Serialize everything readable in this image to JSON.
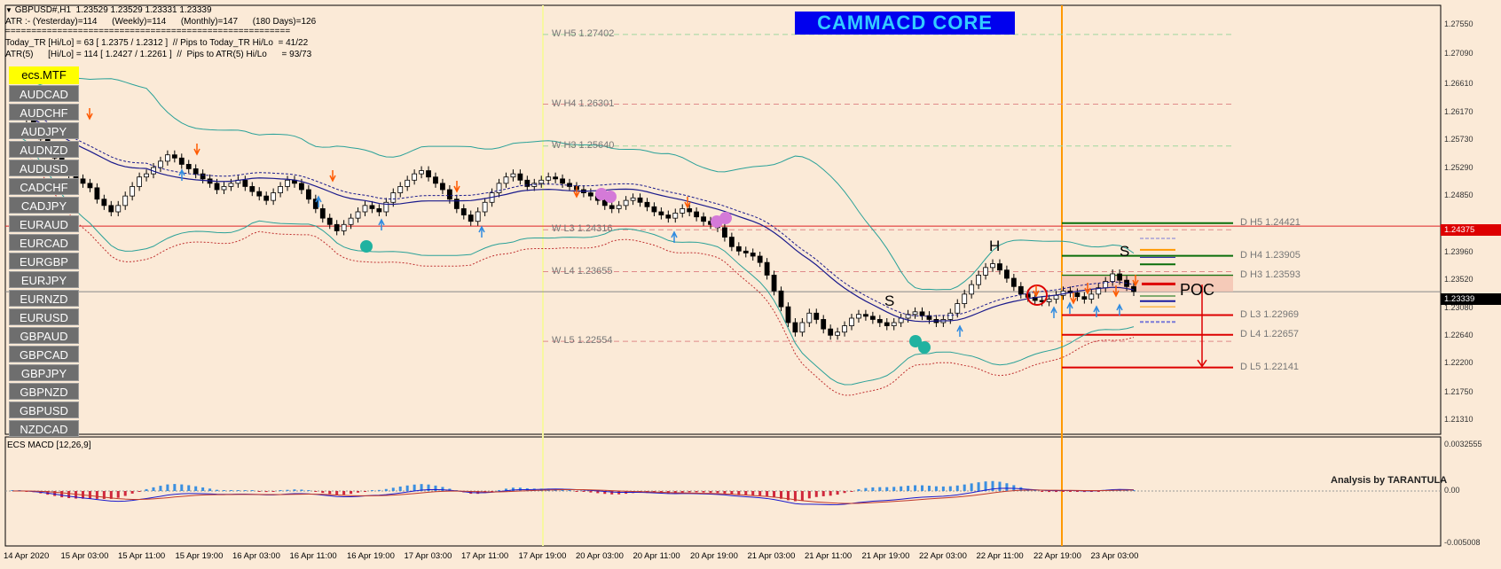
{
  "header": {
    "line1": "GBPUSD#,H1  1.23529 1.23529 1.23331 1.23339",
    "line2": "ATR :- (Yesterday)=114      (Weekly)=114      (Monthly)=147      (180 Days)=126",
    "line3": "=======================================================",
    "line4": "Today_TR [Hi/Lo] = 63 [ 1.2375 / 1.2312 ]  // Pips to Today_TR Hi/Lo  = 41/22",
    "line5": "ATR(5)      [Hi/Lo] = 114 [ 1.2427 / 1.2261 ]  //  Pips to ATR(5) Hi/Lo      = 93/73"
  },
  "banner": "CAMMACD CORE",
  "symbol_panel": {
    "active": "ecs.MTF",
    "items": [
      "AUDCAD",
      "AUDCHF",
      "AUDJPY",
      "AUDNZD",
      "AUDUSD",
      "CADCHF",
      "CADJPY",
      "EURAUD",
      "EURCAD",
      "EURGBP",
      "EURJPY",
      "EURNZD",
      "EURUSD",
      "GBPAUD",
      "GBPCAD",
      "GBPJPY",
      "GBPNZD",
      "GBPUSD",
      "NZDCAD"
    ]
  },
  "weekly_levels": [
    {
      "label": "W  H5 1.27402",
      "value": 1.27402
    },
    {
      "label": "W  H4 1.26301",
      "value": 1.26301
    },
    {
      "label": "W  H3 1.25640",
      "value": 1.2564
    },
    {
      "label": "W  L3 1.24316",
      "value": 1.24316
    },
    {
      "label": "W  L4 1.23655",
      "value": 1.23655
    },
    {
      "label": "W  L5 1.22554",
      "value": 1.22554
    }
  ],
  "daily_levels": [
    {
      "label": "D  H5 1.24421",
      "value": 1.24421,
      "color": "#0a6e0a"
    },
    {
      "label": "D  H4 1.23905",
      "value": 1.23905,
      "color": "#0a6e0a"
    },
    {
      "label": "D  H3 1.23593",
      "value": 1.23593,
      "color": "#0a6e0a"
    },
    {
      "label": "D  L3 1.22969",
      "value": 1.22969,
      "color": "#dd0000"
    },
    {
      "label": "D  L4 1.22657",
      "value": 1.22657,
      "color": "#dd0000"
    },
    {
      "label": "D  L5 1.22141",
      "value": 1.22141,
      "color": "#dd0000"
    }
  ],
  "annotations": {
    "s_left": "S",
    "h": "H",
    "s_right": "S",
    "poc": "POC",
    "analysis": "Analysis by TARANTULA"
  },
  "price_axis": {
    "ticks": [
      "1.27550",
      "1.27090",
      "1.26610",
      "1.26170",
      "1.25730",
      "1.25290",
      "1.24850",
      "1.23960",
      "1.23520",
      "1.23080",
      "1.22640",
      "1.22200",
      "1.21750",
      "1.21310"
    ],
    "hline_badge": "1.24375",
    "current_badge": "1.23339"
  },
  "macd": {
    "label": "ECS MACD [12,26,9]",
    "ticks": [
      "0.0032555",
      "0.00",
      "-0.005008"
    ]
  },
  "time_axis": [
    "14 Apr 2020",
    "15 Apr 03:00",
    "15 Apr 11:00",
    "15 Apr 19:00",
    "16 Apr 03:00",
    "16 Apr 11:00",
    "16 Apr 19:00",
    "17 Apr 03:00",
    "17 Apr 11:00",
    "17 Apr 19:00",
    "20 Apr 03:00",
    "20 Apr 11:00",
    "20 Apr 19:00",
    "21 Apr 03:00",
    "21 Apr 11:00",
    "21 Apr 19:00",
    "22 Apr 03:00",
    "22 Apr 11:00",
    "22 Apr 19:00",
    "23 Apr 03:00"
  ],
  "colors": {
    "bg": "#fbead7",
    "bull": "#ffffff",
    "bear": "#000000",
    "bb": "#2aa198",
    "ma": "#1a1a8c",
    "macd_pos": "#3a8fe0",
    "macd_neg": "#d0283c",
    "vline_orange": "#ff9900",
    "vline_yellow": "#f7f7a0"
  },
  "chart_data": {
    "type": "candlestick",
    "symbol": "GBPUSD#",
    "timeframe": "H1",
    "ylim": [
      1.2131,
      1.2775
    ],
    "close": [
      1.2612,
      1.2618,
      1.2605,
      1.259,
      1.2575,
      1.256,
      1.2545,
      1.2528,
      1.252,
      1.2512,
      1.2505,
      1.2498,
      1.248,
      1.247,
      1.246,
      1.247,
      1.2485,
      1.25,
      1.2515,
      1.252,
      1.253,
      1.254,
      1.255,
      1.2545,
      1.2535,
      1.2528,
      1.252,
      1.2512,
      1.2505,
      1.2495,
      1.25,
      1.2505,
      1.251,
      1.25,
      1.2492,
      1.2485,
      1.2478,
      1.249,
      1.25,
      1.251,
      1.2505,
      1.2495,
      1.248,
      1.2465,
      1.245,
      1.244,
      1.243,
      1.244,
      1.245,
      1.246,
      1.247,
      1.2465,
      1.246,
      1.2475,
      1.249,
      1.25,
      1.251,
      1.252,
      1.2525,
      1.2515,
      1.2505,
      1.2495,
      1.248,
      1.2465,
      1.2455,
      1.2445,
      1.246,
      1.2475,
      1.249,
      1.2505,
      1.2515,
      1.252,
      1.251,
      1.25,
      1.2505,
      1.251,
      1.2515,
      1.2512,
      1.2505,
      1.25,
      1.2495,
      1.249,
      1.2485,
      1.2478,
      1.247,
      1.2465,
      1.247,
      1.2478,
      1.2482,
      1.2475,
      1.2468,
      1.246,
      1.2455,
      1.245,
      1.2458,
      1.2465,
      1.246,
      1.2452,
      1.2445,
      1.244,
      1.2435,
      1.242,
      1.2405,
      1.2398,
      1.2395,
      1.239,
      1.238,
      1.236,
      1.2335,
      1.231,
      1.2285,
      1.227,
      1.2285,
      1.23,
      1.229,
      1.2275,
      1.2265,
      1.227,
      1.228,
      1.2292,
      1.2298,
      1.2295,
      1.229,
      1.2285,
      1.228,
      1.2285,
      1.2292,
      1.2298,
      1.2302,
      1.2296,
      1.229,
      1.2285,
      1.229,
      1.23,
      1.2315,
      1.233,
      1.2345,
      1.236,
      1.2372,
      1.2378,
      1.2368,
      1.2355,
      1.2342,
      1.233,
      1.2325,
      1.232,
      1.2318,
      1.2322,
      1.2328,
      1.2335,
      1.2332,
      1.2326,
      1.2322,
      1.233,
      1.234,
      1.235,
      1.2362,
      1.2352,
      1.2342,
      1.2334
    ]
  }
}
